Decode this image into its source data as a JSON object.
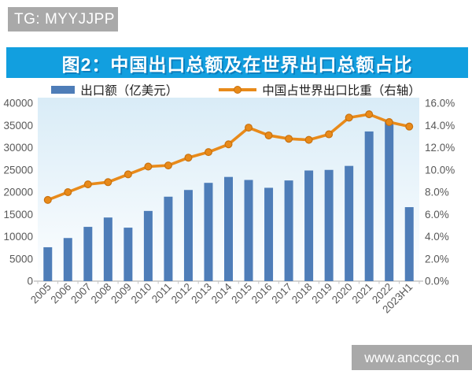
{
  "badge": {
    "text": "TG: MYYJJPP"
  },
  "title": {
    "text": "图2：中国出口总额及在世界出口总额占比"
  },
  "legend": [
    {
      "label": "出口额（亿美元）",
      "type": "bar"
    },
    {
      "label": "中国占世界出口比重（右轴）",
      "type": "line"
    }
  ],
  "watermark": {
    "text": "www.anccgc.cn"
  },
  "colors": {
    "title_bar": "#129fdf",
    "badge_bg": "#a9a9a9",
    "watermark_bg": "#a9a9a9",
    "bar": "#4e7db8",
    "line": "#e88a1a",
    "line_marker_border": "#c9710d",
    "axis_text": "#595959",
    "legend_text": "#1f1f1f",
    "plot_bg_top": "#d9ecf7",
    "plot_bg_bottom": "#fdfeff",
    "axis_line": "#c5c5c5"
  },
  "chart_data": {
    "type": "bar",
    "title": "图2：中国出口总额及在世界出口总额占比",
    "categories": [
      "2005",
      "2006",
      "2007",
      "2008",
      "2009",
      "2010",
      "2011",
      "2012",
      "2013",
      "2014",
      "2015",
      "2016",
      "2017",
      "2018",
      "2019",
      "2020",
      "2021",
      "2022",
      "2023H1"
    ],
    "series": [
      {
        "name": "出口额（亿美元）",
        "type": "bar",
        "axis": "left",
        "values": [
          7620,
          9690,
          12200,
          14300,
          12020,
          15780,
          18980,
          20490,
          22090,
          23420,
          22740,
          20980,
          22630,
          24870,
          25000,
          25900,
          33640,
          35940,
          16630
        ]
      },
      {
        "name": "中国占世界出口比重（右轴）",
        "type": "line",
        "axis": "right",
        "values": [
          7.3,
          8.0,
          8.7,
          8.9,
          9.6,
          10.3,
          10.4,
          11.1,
          11.6,
          12.3,
          13.8,
          13.1,
          12.8,
          12.7,
          13.2,
          14.7,
          15.0,
          14.3,
          13.9
        ]
      }
    ],
    "left_axis": {
      "min": 0,
      "max": 40000,
      "step": 5000,
      "format": "integer"
    },
    "right_axis": {
      "min": 0,
      "max": 16,
      "step": 2,
      "format": "percent1"
    },
    "grid": false,
    "legend_position": "top"
  }
}
